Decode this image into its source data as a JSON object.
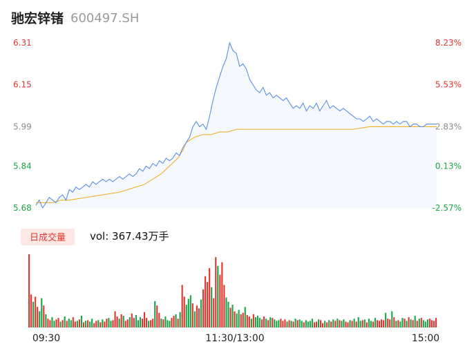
{
  "header": {
    "stock_name": "驰宏锌锗",
    "stock_code": "600497.SH"
  },
  "volume_panel": {
    "badge": "日成交量",
    "vol_label": "vol: 367.43万手"
  },
  "colors": {
    "price_line": "#5b8fe6",
    "avg_line": "#f2b33d",
    "area_fill": "#f5f8fd",
    "up": "#e1362f",
    "down": "#1ba44a",
    "neutral": "#8a8a8a",
    "badge_bg": "#fde8e6"
  },
  "chart_data": [
    {
      "type": "line",
      "title": "",
      "y_ticks_left": [
        "6.31",
        "6.15",
        "5.99",
        "5.84",
        "5.68"
      ],
      "y_tick_values": [
        6.31,
        6.15,
        5.99,
        5.84,
        5.68
      ],
      "y_ticks_right": [
        "8.23%",
        "5.53%",
        "2.83%",
        "0.13%",
        "-2.57%"
      ],
      "ylim": [
        5.68,
        6.31
      ],
      "grid": false,
      "x_labels": [
        "09:30",
        "11:30/13:00",
        "15:00"
      ],
      "points_total": 241,
      "series": [
        {
          "name": "",
          "role": "price",
          "x": [
            0,
            2,
            4,
            6,
            8,
            10,
            12,
            14,
            16,
            18,
            20,
            22,
            24,
            26,
            28,
            30,
            32,
            34,
            36,
            38,
            40,
            42,
            44,
            46,
            48,
            50,
            52,
            54,
            56,
            58,
            60,
            62,
            64,
            66,
            68,
            70,
            72,
            74,
            76,
            78,
            80,
            82,
            84,
            86,
            88,
            90,
            92,
            94,
            96,
            98,
            100,
            102,
            104,
            106,
            108,
            110,
            112,
            114,
            116,
            118,
            120,
            122,
            124,
            126,
            128,
            130,
            132,
            134,
            136,
            138,
            140,
            142,
            144,
            146,
            148,
            150,
            152,
            154,
            156,
            158,
            160,
            162,
            164,
            166,
            168,
            170,
            172,
            174,
            176,
            178,
            180,
            182,
            184,
            186,
            188,
            190,
            192,
            194,
            196,
            198,
            200,
            202,
            204,
            206,
            208,
            210,
            212,
            214,
            216,
            218,
            220,
            222,
            224,
            226,
            228,
            230,
            232,
            234,
            236,
            238,
            240
          ],
          "values": [
            5.69,
            5.71,
            5.68,
            5.7,
            5.72,
            5.71,
            5.7,
            5.72,
            5.73,
            5.71,
            5.75,
            5.74,
            5.76,
            5.75,
            5.76,
            5.77,
            5.76,
            5.78,
            5.77,
            5.78,
            5.79,
            5.78,
            5.79,
            5.78,
            5.79,
            5.8,
            5.79,
            5.8,
            5.81,
            5.8,
            5.81,
            5.83,
            5.82,
            5.84,
            5.83,
            5.85,
            5.84,
            5.86,
            5.85,
            5.87,
            5.86,
            5.87,
            5.89,
            5.88,
            5.91,
            5.93,
            5.95,
            5.99,
            6.01,
            5.99,
            6.0,
            5.98,
            6.03,
            6.09,
            6.14,
            6.18,
            6.22,
            6.25,
            6.31,
            6.28,
            6.27,
            6.22,
            6.23,
            6.21,
            6.17,
            6.15,
            6.13,
            6.12,
            6.14,
            6.11,
            6.12,
            6.1,
            6.11,
            6.1,
            6.09,
            6.1,
            6.08,
            6.06,
            6.07,
            6.06,
            6.08,
            6.05,
            6.07,
            6.06,
            6.08,
            6.05,
            6.07,
            6.09,
            6.06,
            6.07,
            6.06,
            6.05,
            6.06,
            6.05,
            6.04,
            6.03,
            6.02,
            6.02,
            6.01,
            6.02,
            6.03,
            6.01,
            6.02,
            6.01,
            6.0,
            6.01,
            6.01,
            6.0,
            6.01,
            6.0,
            6.01,
            6.01,
            5.99,
            6.0,
            6.0,
            5.99,
            5.99,
            6.0,
            6.0,
            6.0,
            6.0
          ]
        },
        {
          "name": "",
          "role": "average",
          "x": [
            0,
            10,
            15,
            20,
            30,
            40,
            50,
            55,
            60,
            65,
            70,
            75,
            80,
            85,
            88,
            90,
            95,
            100,
            105,
            110,
            115,
            120,
            125,
            130,
            140,
            150,
            160,
            170,
            180,
            190,
            200,
            210,
            220,
            230,
            240
          ],
          "values": [
            5.7,
            5.7,
            5.71,
            5.71,
            5.72,
            5.73,
            5.74,
            5.75,
            5.76,
            5.77,
            5.79,
            5.81,
            5.84,
            5.87,
            5.9,
            5.93,
            5.95,
            5.96,
            5.96,
            5.97,
            5.97,
            5.98,
            5.98,
            5.98,
            5.98,
            5.98,
            5.98,
            5.98,
            5.98,
            5.98,
            5.99,
            5.99,
            5.99,
            5.99,
            5.99
          ]
        }
      ]
    },
    {
      "type": "bar",
      "title": "日成交量",
      "total_label": "vol: 367.43万手",
      "ylim": [
        0,
        100
      ],
      "values": [
        100,
        45,
        35,
        42,
        28,
        22,
        40,
        30,
        18,
        12,
        10,
        14,
        9,
        11,
        13,
        8,
        10,
        15,
        9,
        12,
        10,
        14,
        8,
        9,
        11,
        16,
        7,
        9,
        10,
        8,
        12,
        6,
        9,
        10,
        7,
        11,
        8,
        12,
        13,
        9,
        10,
        22,
        15,
        12,
        18,
        16,
        9,
        11,
        14,
        19,
        13,
        17,
        10,
        14,
        12,
        21,
        13,
        9,
        10,
        12,
        36,
        30,
        20,
        12,
        11,
        15,
        10,
        9,
        13,
        16,
        18,
        12,
        21,
        58,
        42,
        31,
        39,
        44,
        33,
        22,
        30,
        26,
        38,
        52,
        70,
        62,
        81,
        55,
        40,
        96,
        84,
        72,
        89,
        58,
        41,
        35,
        27,
        31,
        22,
        19,
        24,
        18,
        20,
        28,
        17,
        15,
        12,
        18,
        14,
        16,
        13,
        11,
        15,
        12,
        10,
        14,
        13,
        11,
        9,
        10,
        12,
        9,
        11,
        8,
        10,
        9,
        8,
        12,
        10,
        11,
        9,
        7,
        10,
        8,
        9,
        12,
        7,
        8,
        11,
        10,
        6,
        9,
        7,
        10,
        8,
        11,
        9,
        12,
        10,
        9,
        11,
        8,
        7,
        10,
        9,
        12,
        8,
        14,
        9,
        10,
        11,
        7,
        12,
        9,
        8,
        13,
        10,
        9,
        11,
        10,
        20,
        12,
        11,
        22,
        14,
        9,
        10,
        8,
        13,
        12,
        9,
        14,
        11,
        10,
        16,
        9,
        12,
        13,
        10,
        8,
        11,
        12,
        10,
        9,
        13
      ],
      "colors_code": "rrgrrggrgrrggrrgrgrggrrgrgrgrggrrgrgrrggrrrgrgrrgrrgggrrrgrrgrrgrgggrrgrgrrgggrgrrgrrrrgrrgrrrggrgrggrrgrrgrgggrrgrgrgggrrrgrgrgrggrggggrrgrrgrgrgrgrggrrgrgrggrgrggrgrrrrgrrgrgrggrgrgrgrgrgggr"
    }
  ]
}
